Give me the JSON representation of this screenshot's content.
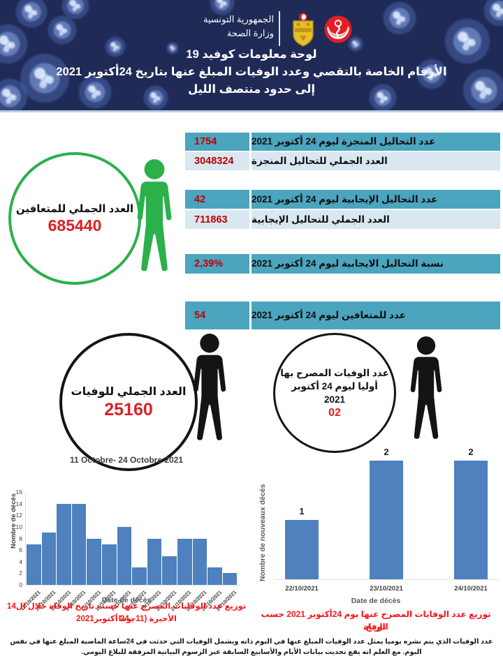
{
  "header": {
    "gov_line1": "الجمهورية التونسية",
    "gov_line2": "وزارة الصحة",
    "title_line1": "لوحة معلومات كوفيد  19",
    "title_line2": "الأرقام الخاصة بالتقصي وعدد الوفيات المبلغ عنها بتاريخ  24أكتوبر 2021",
    "title_line3": "إلى حدود منتصف الليل"
  },
  "colors": {
    "header_navy": "#1F2A56",
    "teal_row": "#4BA5BE",
    "light_row": "#D9E8F0",
    "value_red": "#C00000",
    "circle_number_red": "#DD2025",
    "caption_red": "#FB1418",
    "bar_blue": "#4E81BD",
    "recovered_green": "#2BAF4D",
    "deaths_black": "#141414"
  },
  "stats": {
    "rows": [
      {
        "label": "عدد التحاليل المنجزة ليوم 24  أكتوبر 2021",
        "value": "1754"
      },
      {
        "label": "العدد الجملي للتحاليل المنجزة",
        "value": "3048324"
      },
      {
        "label": "عدد التحاليل الإيجابية ليوم  24 أكتوبر 2021",
        "value": "42"
      },
      {
        "label": "العدد الجملي للتحاليل الإيجابية",
        "value": "711863"
      },
      {
        "label": "نسبة التحاليل الايجابية ليوم 24 أكتوبر 2021",
        "value": "2,39%"
      },
      {
        "label": "عدد للمتعافين ليوم 24 أكتوبر 2021",
        "value": "54"
      }
    ]
  },
  "recovered_circle": {
    "label": "العدد الجملي للمتعافين",
    "value": "685440"
  },
  "deaths_circle": {
    "label": "العدد الجملي للوفيات",
    "value": "25160"
  },
  "reported_circle": {
    "line1": "عدد الوفيات المصرح بها",
    "line2": "أوليا ليوم 24  أكتوبر",
    "line3": "2021",
    "value": "02"
  },
  "chart_data": [
    {
      "type": "bar",
      "title": "11 Octobre- 24 Octobre 2021",
      "categories": [
        "11/10/2021",
        "12/10/2021",
        "13/10/2021",
        "14/10/2021",
        "15/10/2021",
        "16/10/2021",
        "17/10/2021",
        "18/10/2021",
        "19/10/2021",
        "20/10/2021",
        "21/10/2021",
        "22/10/2021",
        "23/10/2021",
        "24/10/2021"
      ],
      "values": [
        7,
        9,
        14,
        14,
        8,
        7,
        10,
        3,
        8,
        5,
        8,
        8,
        3,
        2
      ],
      "xlabel": "Date de décès",
      "ylabel": "Nombre de décès",
      "ylim": [
        0,
        16
      ],
      "yticks": [
        0,
        2,
        4,
        6,
        8,
        10,
        12,
        14,
        16
      ],
      "grid": false,
      "legend": "none",
      "caption_line1": "توزيع عدد الوفايات المصرح عنها حسب تاريخ الوفاة خلال ال14 يوما",
      "caption_line2": "الأخيرة (11– 24 أكتوبر2021"
    },
    {
      "type": "bar",
      "title": "",
      "categories": [
        "22/10/2021",
        "23/10/2021",
        "24/10/2021"
      ],
      "values": [
        1,
        2,
        2
      ],
      "data_labels": [
        "1",
        "2",
        "2"
      ],
      "xlabel": "Date de décès",
      "ylabel": "Nombre de nouveaux décès",
      "ylim": [
        0,
        2.2
      ],
      "grid": false,
      "legend": "none",
      "caption_line1": "توزيع عدد الوفايات المصرح عنها يوم  24أكتوبر 2021 حسب تاريخ",
      "caption_line2": "الوفاة"
    }
  ],
  "footnote": "عدد الوفيات الذي يتم نشره يوميا يمثل عدد الوفيات المبلغ عنها في اليوم ذاته ويشمل الوفيات التي حدثت في 24ساعة الماضية المبلغ عنها في نفس اليوم. مع العلم انه يقع تحديث بيانات الأيام والأسابيع السابقة عبر الرسوم البيانية المرفقة للبلاغ اليومي."
}
